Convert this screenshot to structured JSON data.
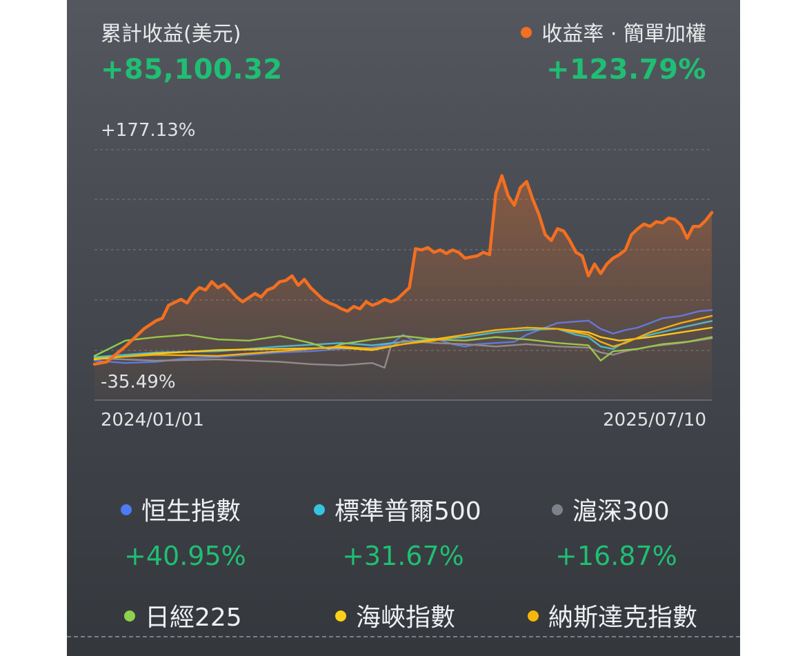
{
  "header": {
    "left_label": "累計收益(美元)",
    "left_value": "+85,100.32",
    "right_label": "收益率 · 簡單加權",
    "right_value": "+123.79%"
  },
  "chart_data": {
    "type": "line",
    "x_range": [
      "2024/01/01",
      "2025/07/10"
    ],
    "y_range_labels": {
      "max": "+177.13%",
      "min": "-35.49%"
    },
    "ylim": [
      -35.49,
      177.13
    ],
    "grid": true,
    "series": [
      {
        "name": "收益率",
        "color": "#f36f21",
        "area": true,
        "points": [
          [
            0,
            -5
          ],
          [
            2,
            -3
          ],
          [
            5,
            10
          ],
          [
            8,
            25
          ],
          [
            10,
            32
          ],
          [
            11,
            34
          ],
          [
            12,
            45
          ],
          [
            14,
            50
          ],
          [
            15,
            47
          ],
          [
            16,
            55
          ],
          [
            17,
            60
          ],
          [
            18,
            58
          ],
          [
            19,
            65
          ],
          [
            20,
            60
          ],
          [
            21,
            63
          ],
          [
            22,
            58
          ],
          [
            23,
            52
          ],
          [
            24,
            48
          ],
          [
            26,
            55
          ],
          [
            27,
            52
          ],
          [
            28,
            58
          ],
          [
            29,
            60
          ],
          [
            30,
            65
          ],
          [
            31,
            66
          ],
          [
            32,
            70
          ],
          [
            33,
            62
          ],
          [
            34,
            67
          ],
          [
            35,
            60
          ],
          [
            36,
            55
          ],
          [
            37,
            50
          ],
          [
            38,
            47
          ],
          [
            39,
            45
          ],
          [
            40,
            42
          ],
          [
            41,
            40
          ],
          [
            42,
            44
          ],
          [
            43,
            42
          ],
          [
            44,
            48
          ],
          [
            45,
            45
          ],
          [
            46,
            47
          ],
          [
            47,
            50
          ],
          [
            48,
            48
          ],
          [
            49,
            50
          ],
          [
            50,
            55
          ],
          [
            51,
            60
          ],
          [
            52,
            93
          ],
          [
            53,
            92
          ],
          [
            54,
            94
          ],
          [
            55,
            90
          ],
          [
            56,
            92
          ],
          [
            57,
            89
          ],
          [
            58,
            92
          ],
          [
            59,
            90
          ],
          [
            60,
            85
          ],
          [
            61,
            86
          ],
          [
            62,
            87
          ],
          [
            63,
            90
          ],
          [
            64,
            88
          ],
          [
            65,
            140
          ],
          [
            66,
            155
          ],
          [
            67,
            138
          ],
          [
            68,
            130
          ],
          [
            69,
            145
          ],
          [
            70,
            150
          ],
          [
            71,
            135
          ],
          [
            72,
            122
          ],
          [
            73,
            105
          ],
          [
            74,
            100
          ],
          [
            75,
            110
          ],
          [
            76,
            108
          ],
          [
            77,
            100
          ],
          [
            78,
            90
          ],
          [
            79,
            87
          ],
          [
            80,
            70
          ],
          [
            81,
            80
          ],
          [
            82,
            72
          ],
          [
            83,
            80
          ],
          [
            84,
            85
          ],
          [
            85,
            88
          ],
          [
            86,
            92
          ],
          [
            87,
            105
          ],
          [
            88,
            110
          ],
          [
            89,
            114
          ],
          [
            90,
            112
          ],
          [
            91,
            116
          ],
          [
            92,
            115
          ],
          [
            93,
            119
          ],
          [
            94,
            118
          ],
          [
            95,
            113
          ],
          [
            96,
            102
          ],
          [
            97,
            112
          ],
          [
            98,
            112
          ],
          [
            99,
            117
          ],
          [
            100,
            123.79
          ]
        ]
      },
      {
        "name": "恒生指數",
        "color": "#4d7bf3",
        "points": [
          [
            0,
            -2
          ],
          [
            5,
            -4
          ],
          [
            10,
            -3
          ],
          [
            15,
            0
          ],
          [
            20,
            1
          ],
          [
            25,
            3
          ],
          [
            30,
            5
          ],
          [
            35,
            6
          ],
          [
            40,
            8
          ],
          [
            45,
            9
          ],
          [
            48,
            12
          ],
          [
            50,
            20
          ],
          [
            52,
            14
          ],
          [
            55,
            17
          ],
          [
            58,
            12
          ],
          [
            60,
            10
          ],
          [
            62,
            12
          ],
          [
            65,
            13
          ],
          [
            68,
            14
          ],
          [
            70,
            20
          ],
          [
            75,
            30
          ],
          [
            80,
            32
          ],
          [
            82,
            25
          ],
          [
            84,
            21
          ],
          [
            86,
            24
          ],
          [
            88,
            26
          ],
          [
            90,
            30
          ],
          [
            92,
            34
          ],
          [
            95,
            36
          ],
          [
            98,
            40
          ],
          [
            100,
            40.95
          ]
        ]
      },
      {
        "name": "標準普爾500",
        "color": "#36c3e0",
        "points": [
          [
            0,
            1
          ],
          [
            10,
            5
          ],
          [
            20,
            6
          ],
          [
            30,
            10
          ],
          [
            40,
            13
          ],
          [
            45,
            11
          ],
          [
            50,
            14
          ],
          [
            55,
            16
          ],
          [
            60,
            18
          ],
          [
            65,
            22
          ],
          [
            70,
            24
          ],
          [
            75,
            25
          ],
          [
            78,
            20
          ],
          [
            80,
            18
          ],
          [
            82,
            10
          ],
          [
            84,
            8
          ],
          [
            86,
            14
          ],
          [
            90,
            20
          ],
          [
            95,
            26
          ],
          [
            100,
            31.67
          ]
        ]
      },
      {
        "name": "滬深300",
        "color": "#8a8d94",
        "points": [
          [
            0,
            0
          ],
          [
            10,
            -2
          ],
          [
            20,
            -1
          ],
          [
            30,
            -3
          ],
          [
            35,
            -5
          ],
          [
            40,
            -6
          ],
          [
            45,
            -4
          ],
          [
            47,
            -8
          ],
          [
            48,
            10
          ],
          [
            50,
            15
          ],
          [
            55,
            13
          ],
          [
            60,
            12
          ],
          [
            65,
            10
          ],
          [
            70,
            12
          ],
          [
            75,
            10
          ],
          [
            80,
            9
          ],
          [
            82,
            5
          ],
          [
            84,
            3
          ],
          [
            86,
            6
          ],
          [
            90,
            10
          ],
          [
            95,
            13
          ],
          [
            100,
            16.87
          ]
        ]
      },
      {
        "name": "日經225",
        "color": "#8fd14f",
        "points": [
          [
            0,
            2
          ],
          [
            5,
            15
          ],
          [
            10,
            18
          ],
          [
            15,
            20
          ],
          [
            20,
            16
          ],
          [
            25,
            15
          ],
          [
            30,
            19
          ],
          [
            35,
            13
          ],
          [
            38,
            8
          ],
          [
            40,
            12
          ],
          [
            45,
            16
          ],
          [
            50,
            19
          ],
          [
            55,
            16
          ],
          [
            60,
            15
          ],
          [
            65,
            18
          ],
          [
            70,
            16
          ],
          [
            75,
            13
          ],
          [
            80,
            11
          ],
          [
            82,
            -2
          ],
          [
            84,
            6
          ],
          [
            88,
            8
          ],
          [
            92,
            12
          ],
          [
            96,
            14
          ],
          [
            100,
            18
          ]
        ]
      },
      {
        "name": "海峽指數",
        "color": "#ffd21a",
        "points": [
          [
            0,
            -1
          ],
          [
            10,
            4
          ],
          [
            20,
            7
          ],
          [
            30,
            8
          ],
          [
            40,
            9
          ],
          [
            45,
            7
          ],
          [
            50,
            12
          ],
          [
            55,
            16
          ],
          [
            60,
            20
          ],
          [
            65,
            24
          ],
          [
            70,
            26
          ],
          [
            75,
            25
          ],
          [
            80,
            22
          ],
          [
            82,
            18
          ],
          [
            85,
            15
          ],
          [
            90,
            18
          ],
          [
            95,
            22
          ],
          [
            100,
            26
          ]
        ]
      },
      {
        "name": "納斯達克指數",
        "color": "#f5b70a",
        "points": [
          [
            0,
            0
          ],
          [
            10,
            3
          ],
          [
            20,
            2
          ],
          [
            30,
            6
          ],
          [
            40,
            10
          ],
          [
            45,
            8
          ],
          [
            50,
            12
          ],
          [
            55,
            15
          ],
          [
            60,
            20
          ],
          [
            65,
            24
          ],
          [
            70,
            26
          ],
          [
            75,
            25
          ],
          [
            80,
            20
          ],
          [
            82,
            14
          ],
          [
            84,
            10
          ],
          [
            86,
            13
          ],
          [
            90,
            22
          ],
          [
            95,
            30
          ],
          [
            100,
            36
          ]
        ]
      }
    ]
  },
  "legend": {
    "items": [
      {
        "label": "恒生指數",
        "value": "+40.95%"
      },
      {
        "label": "標準普爾500",
        "value": "+31.67%"
      },
      {
        "label": "滬深300",
        "value": "+16.87%"
      },
      {
        "label": "日經225",
        "value": ""
      },
      {
        "label": "海峽指數",
        "value": ""
      },
      {
        "label": "納斯達克指數",
        "value": ""
      }
    ]
  }
}
